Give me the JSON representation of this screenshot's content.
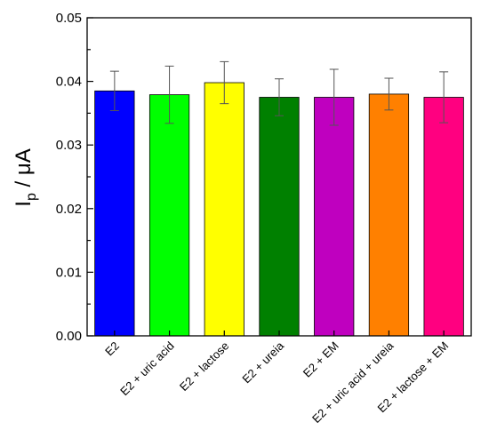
{
  "chart_data": {
    "type": "bar",
    "title": "",
    "xlabel": "",
    "ylabel_main": "I",
    "ylabel_sub": "p",
    "ylabel_unit": " / μA",
    "ylim": [
      0,
      0.05
    ],
    "yticks": [
      "0.00",
      "0.01",
      "0.02",
      "0.03",
      "0.04",
      "0.05"
    ],
    "grid": false,
    "categories": [
      "E2",
      "E2 + uric acid",
      "E2 + lactose",
      "E2 + ureia",
      "E2 + EM",
      "E2 + uric acid + ureia",
      "E2 + lactose + EM"
    ],
    "values": [
      0.0385,
      0.0379,
      0.0398,
      0.0375,
      0.0375,
      0.038,
      0.0375
    ],
    "errors": [
      0.0031,
      0.0045,
      0.0033,
      0.0029,
      0.0044,
      0.0025,
      0.004
    ],
    "colors": [
      "#0000ff",
      "#00ff00",
      "#ffff00",
      "#008000",
      "#bf00bf",
      "#ff8000",
      "#ff0080"
    ]
  }
}
